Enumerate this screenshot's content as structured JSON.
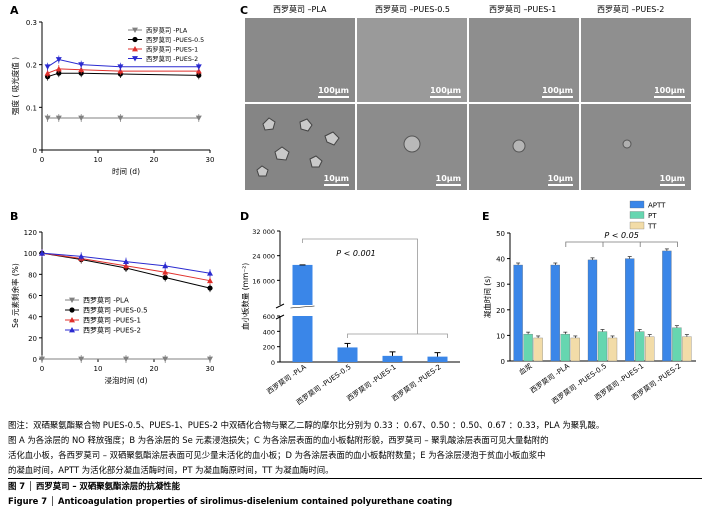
{
  "panels": {
    "A": "A",
    "B": "B",
    "C": "C",
    "D": "D",
    "E": "E"
  },
  "chart_data": [
    {
      "id": "A",
      "type": "line",
      "ylabel": "强度 ( 吸光度值 )",
      "xlabel": "时间 (d)",
      "xlim": [
        0,
        30
      ],
      "ylim": [
        0,
        0.3
      ],
      "xticks": [
        "0",
        "10",
        "20",
        "30"
      ],
      "yticks": [
        "0",
        "0.1",
        "0.2",
        "0.3"
      ],
      "legend_position": "top-right",
      "x": [
        1,
        3,
        7,
        14,
        28
      ],
      "series": [
        {
          "name": "西罗莫司 -PLA",
          "color": "#808080",
          "marker": "triangle-down",
          "values": [
            0.075,
            0.075,
            0.075,
            0.075,
            0.075
          ]
        },
        {
          "name": "西罗莫司 -PUES-0.5",
          "color": "#000000",
          "marker": "circle",
          "values": [
            0.172,
            0.18,
            0.18,
            0.178,
            0.175
          ]
        },
        {
          "name": "西罗莫司 -PUES-1",
          "color": "#e0302c",
          "marker": "triangle-up",
          "values": [
            0.18,
            0.19,
            0.188,
            0.185,
            0.185
          ]
        },
        {
          "name": "西罗莫司 -PUES-2",
          "color": "#2b2bd0",
          "marker": "triangle-down",
          "values": [
            0.195,
            0.212,
            0.2,
            0.195,
            0.195
          ]
        }
      ]
    },
    {
      "id": "B",
      "type": "line",
      "ylabel": "Se 元素剩余率 (%)",
      "xlabel": "浸泡时间 (d)",
      "xlim": [
        0,
        30
      ],
      "ylim": [
        0,
        120
      ],
      "xticks": [
        "0",
        "10",
        "20",
        "30"
      ],
      "yticks": [
        "0",
        "20",
        "40",
        "60",
        "80",
        "100",
        "120"
      ],
      "legend_position": "center-left",
      "x": [
        0,
        7,
        15,
        22,
        30
      ],
      "series": [
        {
          "name": "西罗莫司 -PLA",
          "color": "#808080",
          "marker": "triangle-down",
          "values": [
            0,
            0,
            0,
            0,
            0
          ]
        },
        {
          "name": "西罗莫司 -PUES-0.5",
          "color": "#000000",
          "marker": "circle",
          "values": [
            100,
            94,
            86,
            77,
            67
          ]
        },
        {
          "name": "西罗莫司 -PUES-1",
          "color": "#e0302c",
          "marker": "triangle-up",
          "values": [
            100,
            95,
            88,
            82,
            74
          ]
        },
        {
          "name": "西罗莫司 -PUES-2",
          "color": "#2b2bd0",
          "marker": "triangle-up",
          "values": [
            100,
            97,
            92,
            88,
            81
          ]
        }
      ]
    },
    {
      "id": "D",
      "type": "bar",
      "ylabel": "血小板数量 (mm⁻²)",
      "yticks": [
        "0",
        "200",
        "400",
        "600",
        "16 000",
        "24 000",
        "32 000"
      ],
      "categories": [
        "西罗莫司 -PLA",
        "西罗莫司 -PUES-0.5",
        "西罗莫司 -PUES-1",
        "西罗莫司 -PUES-2"
      ],
      "values": [
        21000,
        190,
        80,
        70
      ],
      "color": "#3a86e8",
      "annotation": "P < 0.001"
    },
    {
      "id": "E",
      "type": "bar",
      "ylabel": "凝血时间 (s)",
      "ylim": [
        0,
        50
      ],
      "yticks": [
        "0",
        "10",
        "20",
        "30",
        "40",
        "50"
      ],
      "categories": [
        "血浆",
        "西罗莫司 -PLA",
        "西罗莫司 -PUES-0.5",
        "西罗莫司 -PUES-1",
        "西罗莫司 -PUES-2"
      ],
      "legend_position": "top-right",
      "annotation": "P < 0.05",
      "series": [
        {
          "name": "APTT",
          "color": "#3a86e8",
          "values": [
            37.5,
            37.5,
            39.5,
            40,
            43
          ]
        },
        {
          "name": "PT",
          "color": "#66d6b0",
          "values": [
            10.5,
            10.5,
            11.5,
            11.5,
            13
          ]
        },
        {
          "name": "TT",
          "color": "#f2dca8",
          "values": [
            9,
            9,
            9,
            9.5,
            9.5
          ]
        }
      ]
    }
  ],
  "sem": {
    "columns": [
      "西罗莫司 –PLA",
      "西罗莫司 –PUES-0.5",
      "西罗莫司 –PUES-1",
      "西罗莫司 –PUES-2"
    ],
    "row1_scale": "100μm",
    "row2_scale": "10μm"
  },
  "caption": {
    "line1": "图注：双硒聚氨酯聚合物 PUES-0.5、PUES-1、PUES-2 中双硒化合物与聚乙二醇的摩尔比分别为 0.33 ：0.67、0.50 ：0.50、0.67 ：0.33，PLA 为聚乳酸。",
    "line2": "图 A 为各涂层的 NO 释放强度；B 为各涂层的 Se 元素浸泡损失；C 为各涂层表面的血小板黏附形貌，西罗莫司 – 聚乳酸涂层表面可见大量黏附的",
    "line3": "活化血小板，各西罗莫司 – 双硒聚氨酯涂层表面可见少量未活化的血小板；D 为各涂层表面的血小板黏附数量；E 为各涂层浸泡于贫血小板血浆中",
    "line4": "的凝血时间，APTT 为活化部分凝血活酶时间，PT 为凝血酶原时间，TT 为凝血酶时间。",
    "title_cn": "图 7 │ 西罗莫司 – 双硒聚氨酯涂层的抗凝性能",
    "title_en": "Figure 7 │ Anticoagulation properties of sirolimus-diselenium contained polyurethane coating"
  }
}
